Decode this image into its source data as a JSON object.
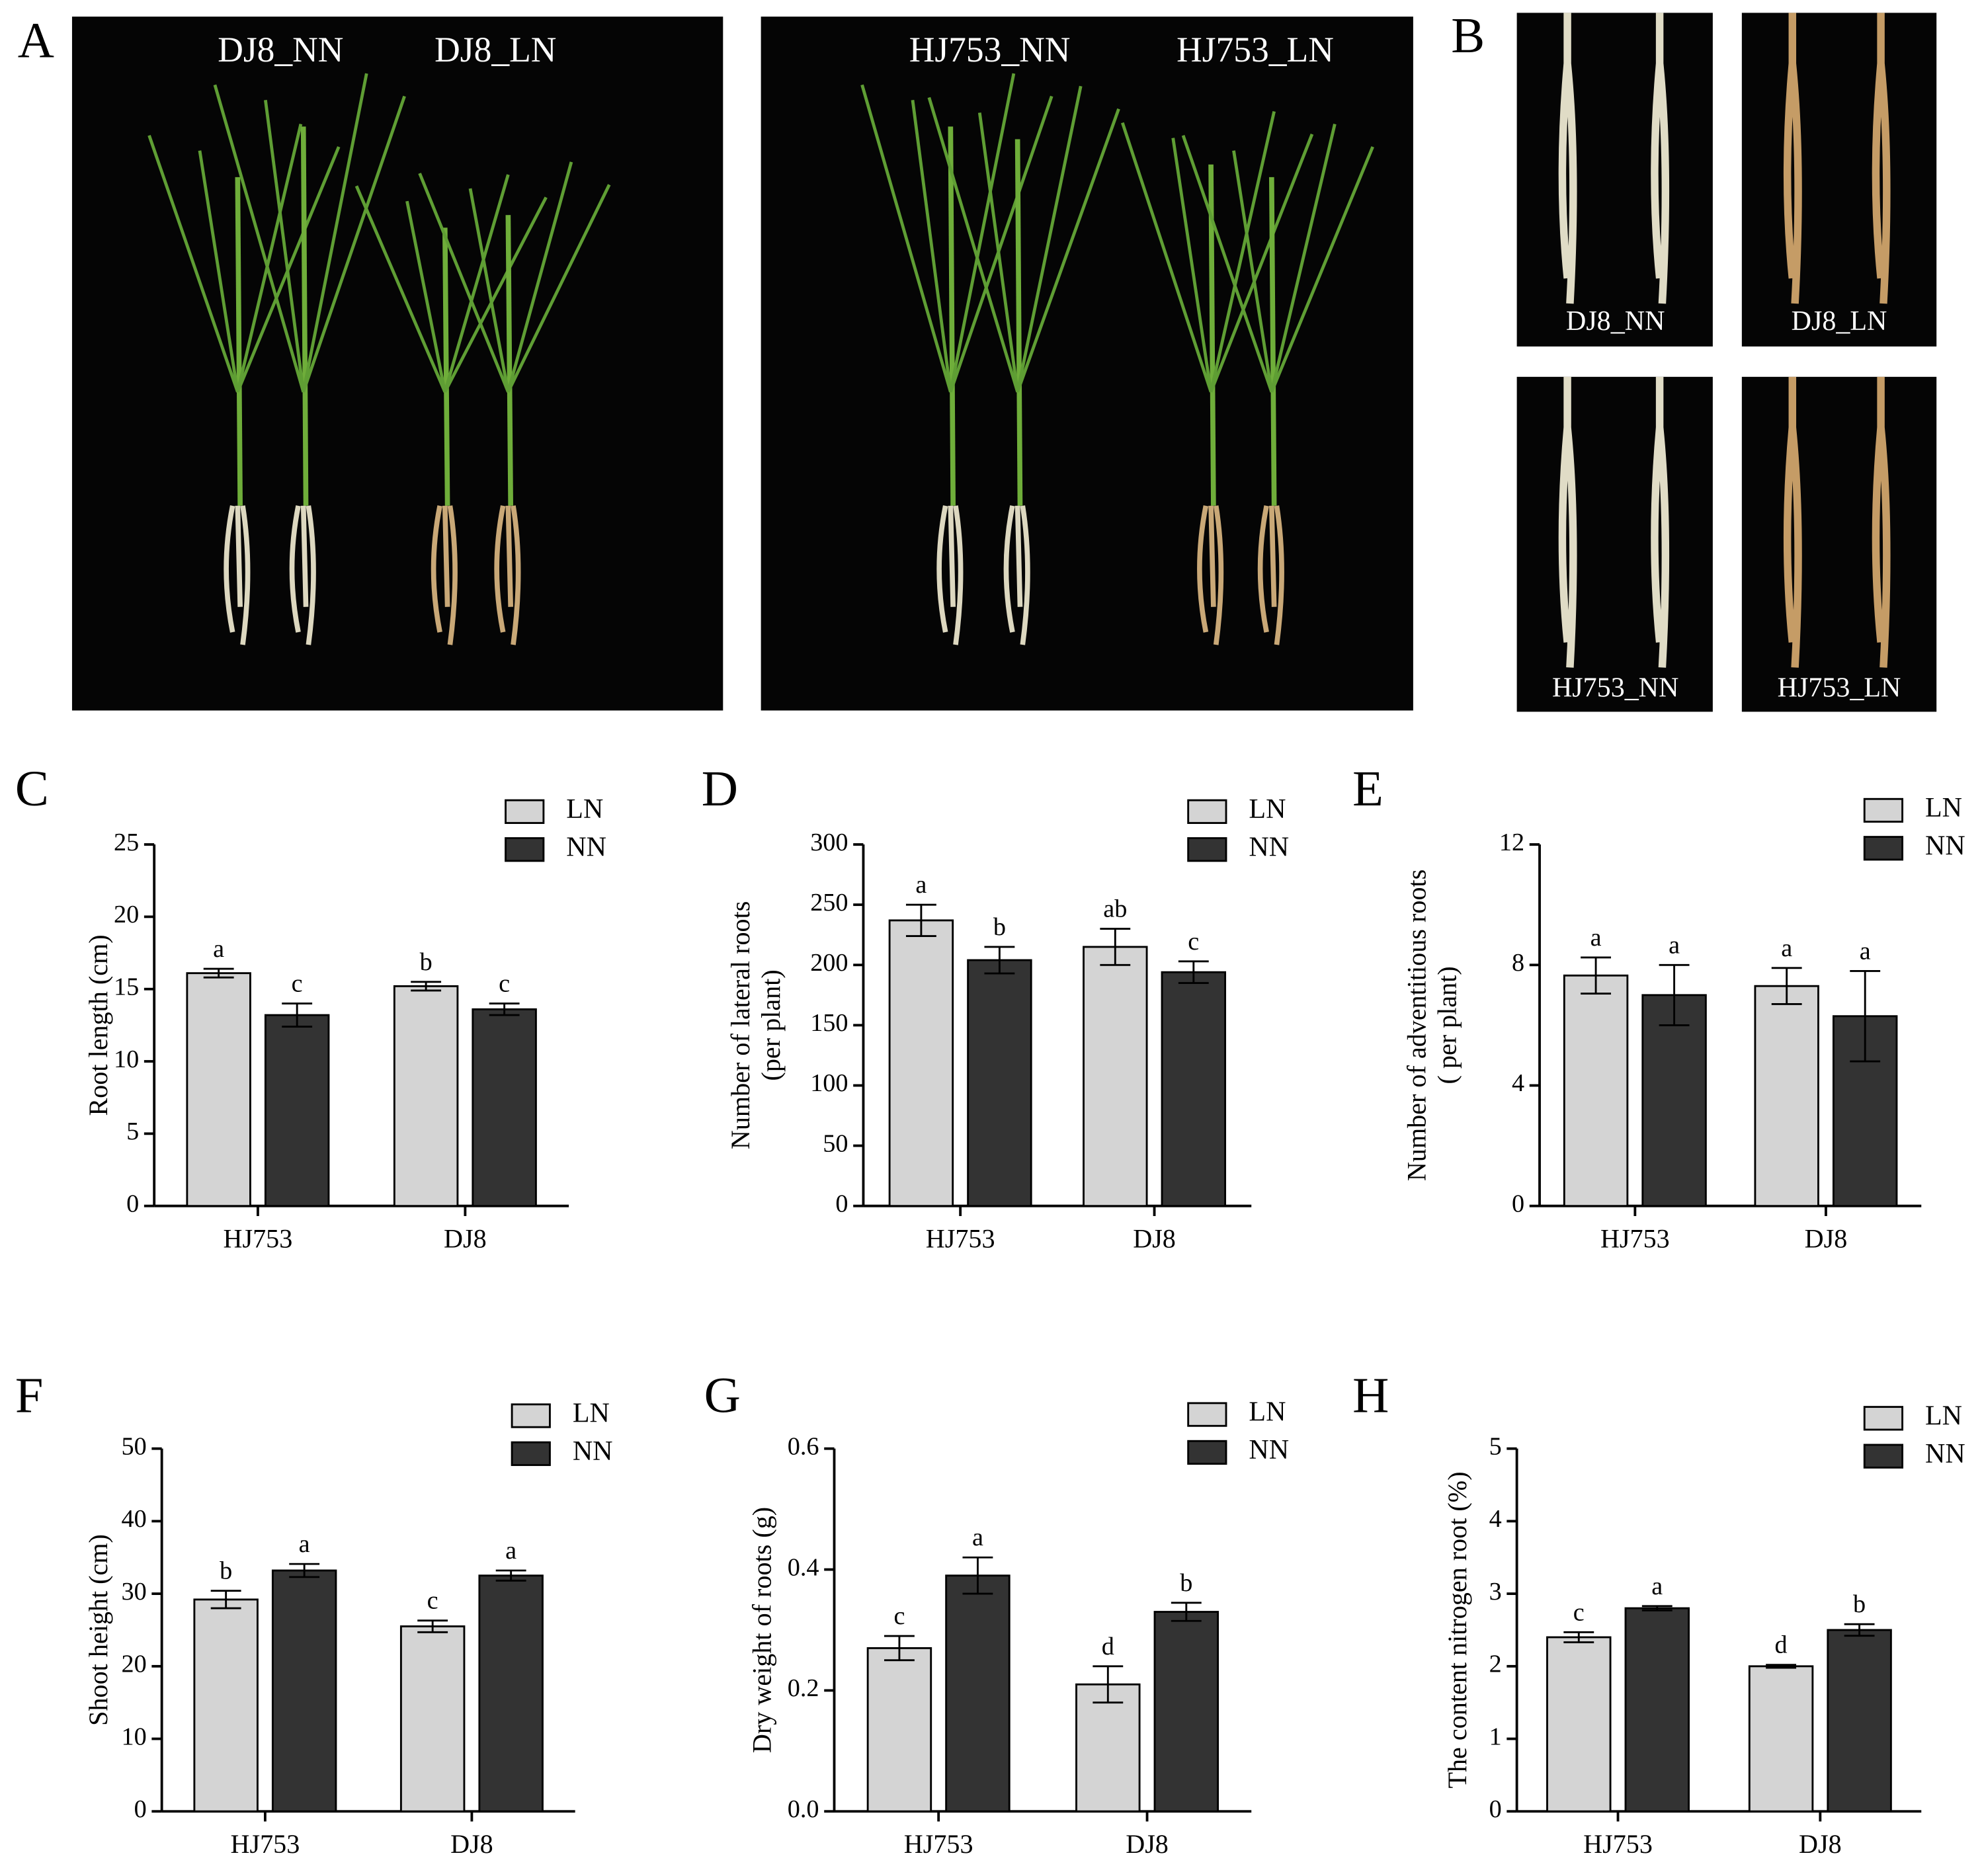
{
  "photos": {
    "A": {
      "label": "A",
      "captions": [
        "DJ8_NN",
        "DJ8_LN",
        "HJ753_NN",
        "HJ753_LN"
      ]
    },
    "B": {
      "label": "B",
      "captions": [
        "DJ8_NN",
        "DJ8_LN",
        "HJ753_NN",
        "HJ753_LN"
      ]
    }
  },
  "chart_data": [
    {
      "type": "bar",
      "panel": "C",
      "ylabel": [
        "Root length (cm)"
      ],
      "categories": [
        "HJ753",
        "DJ8"
      ],
      "ylim": [
        0,
        25
      ],
      "yticks": [
        0,
        5,
        10,
        15,
        20,
        25
      ],
      "series": [
        {
          "name": "LN",
          "color": "#d4d4d4",
          "values": [
            16.1,
            15.2
          ],
          "errors": [
            0.3,
            0.3
          ],
          "letters": [
            "a",
            "b"
          ]
        },
        {
          "name": "NN",
          "color": "#333333",
          "values": [
            13.2,
            13.6
          ],
          "errors": [
            0.8,
            0.4
          ],
          "letters": [
            "c",
            "c"
          ]
        }
      ]
    },
    {
      "type": "bar",
      "panel": "D",
      "ylabel": [
        "Number of lateral roots",
        "(per plant)"
      ],
      "categories": [
        "HJ753",
        "DJ8"
      ],
      "ylim": [
        0,
        300
      ],
      "yticks": [
        0,
        50,
        100,
        150,
        200,
        250,
        300
      ],
      "series": [
        {
          "name": "LN",
          "color": "#d4d4d4",
          "values": [
            237,
            215
          ],
          "errors": [
            13,
            15
          ],
          "letters": [
            "a",
            "ab"
          ]
        },
        {
          "name": "NN",
          "color": "#333333",
          "values": [
            204,
            194
          ],
          "errors": [
            11,
            9
          ],
          "letters": [
            "b",
            "c"
          ]
        }
      ]
    },
    {
      "type": "bar",
      "panel": "E",
      "ylabel": [
        "Number of adventitious roots",
        "( per plant)"
      ],
      "categories": [
        "HJ753",
        "DJ8"
      ],
      "ylim": [
        0,
        12
      ],
      "yticks": [
        0,
        4,
        8,
        12
      ],
      "series": [
        {
          "name": "LN",
          "color": "#d4d4d4",
          "values": [
            7.65,
            7.3
          ],
          "errors": [
            0.6,
            0.6
          ],
          "letters": [
            "a",
            "a"
          ]
        },
        {
          "name": "NN",
          "color": "#333333",
          "values": [
            7.0,
            6.3
          ],
          "errors": [
            1.0,
            1.5
          ],
          "letters": [
            "a",
            "a"
          ]
        }
      ]
    },
    {
      "type": "bar",
      "panel": "F",
      "ylabel": [
        "Shoot height (cm)"
      ],
      "categories": [
        "HJ753",
        "DJ8"
      ],
      "ylim": [
        0,
        50
      ],
      "yticks": [
        0,
        10,
        20,
        30,
        40,
        50
      ],
      "series": [
        {
          "name": "LN",
          "color": "#d4d4d4",
          "values": [
            29.2,
            25.5
          ],
          "errors": [
            1.2,
            0.8
          ],
          "letters": [
            "b",
            "c"
          ]
        },
        {
          "name": "NN",
          "color": "#333333",
          "values": [
            33.2,
            32.5
          ],
          "errors": [
            0.9,
            0.7
          ],
          "letters": [
            "a",
            "a"
          ]
        }
      ]
    },
    {
      "type": "bar",
      "panel": "G",
      "ylabel": [
        "Dry weight of roots (g)"
      ],
      "categories": [
        "HJ753",
        "DJ8"
      ],
      "ylim": [
        0,
        0.6
      ],
      "yticks": [
        {
          "value": 0,
          "label": "0.0"
        },
        0.2,
        0.4,
        0.6
      ],
      "series": [
        {
          "name": "LN",
          "color": "#d4d4d4",
          "values": [
            0.27,
            0.21
          ],
          "errors": [
            0.02,
            0.03
          ],
          "letters": [
            "c",
            "d"
          ]
        },
        {
          "name": "NN",
          "color": "#333333",
          "values": [
            0.39,
            0.33
          ],
          "errors": [
            0.03,
            0.015
          ],
          "letters": [
            "a",
            "b"
          ]
        }
      ]
    },
    {
      "type": "bar",
      "panel": "H",
      "ylabel": [
        "The content nitrogen root (%)"
      ],
      "categories": [
        "HJ753",
        "DJ8"
      ],
      "ylim": [
        0,
        5
      ],
      "yticks": [
        0,
        1,
        2,
        3,
        4,
        5
      ],
      "series": [
        {
          "name": "LN",
          "color": "#d4d4d4",
          "values": [
            2.4,
            2.0
          ],
          "errors": [
            0.07,
            0.02
          ],
          "letters": [
            "c",
            "d"
          ]
        },
        {
          "name": "NN",
          "color": "#333333",
          "values": [
            2.8,
            2.5
          ],
          "errors": [
            0.03,
            0.08
          ],
          "letters": [
            "a",
            "b"
          ]
        }
      ]
    }
  ]
}
